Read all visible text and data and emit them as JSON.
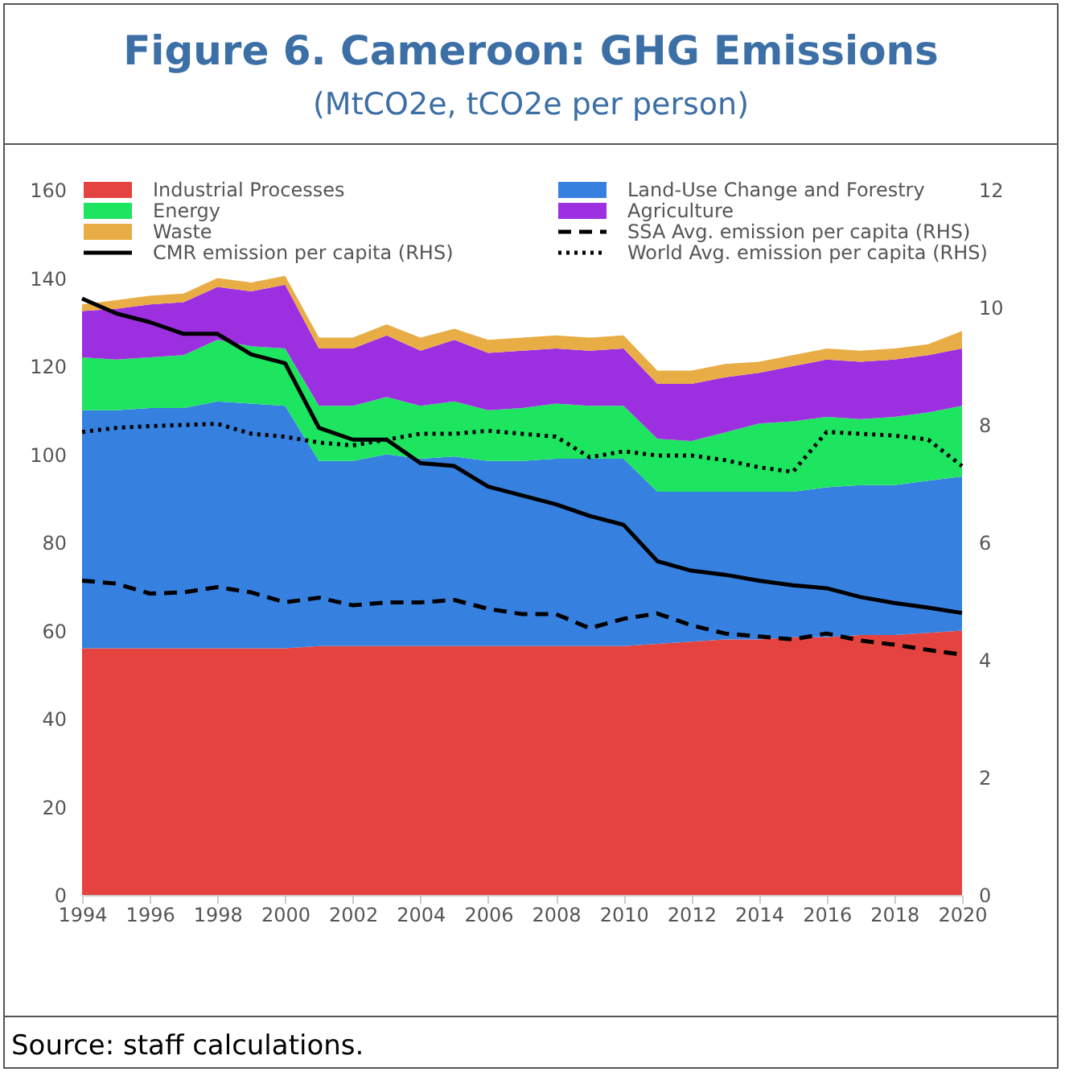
{
  "chart_data": {
    "type": "area",
    "title": "Figure 6. Cameroon: GHG Emissions",
    "subtitle": "(MtCO2e, tCO2e per person)",
    "x": [
      1994,
      1995,
      1996,
      1997,
      1998,
      1999,
      2000,
      2001,
      2002,
      2003,
      2004,
      2005,
      2006,
      2007,
      2008,
      2009,
      2010,
      2011,
      2012,
      2013,
      2014,
      2015,
      2016,
      2017,
      2018,
      2019,
      2020
    ],
    "xlim": [
      1994,
      2020
    ],
    "xticks": [
      1994,
      1996,
      1998,
      2000,
      2002,
      2004,
      2006,
      2008,
      2010,
      2012,
      2014,
      2016,
      2018,
      2020
    ],
    "ylim": [
      0,
      160
    ],
    "yticks": [
      0,
      20,
      40,
      60,
      80,
      100,
      120,
      140,
      160
    ],
    "y2lim": [
      0,
      12
    ],
    "y2ticks": [
      0,
      2,
      4,
      6,
      8,
      10,
      12
    ],
    "stacked": true,
    "grid": false,
    "legend": "top",
    "series": [
      {
        "name": "Industrial Processes",
        "color": "#e5433f",
        "values": [
          56,
          56,
          56,
          56,
          56,
          56,
          56,
          56.5,
          56.5,
          56.5,
          56.5,
          56.5,
          56.5,
          56.5,
          56.5,
          56.5,
          56.5,
          57,
          57.5,
          58,
          58,
          58.5,
          58.5,
          59,
          59,
          59.5,
          60
        ]
      },
      {
        "name": "Land-Use Change and Forestry",
        "color": "#3680e0",
        "values": [
          54,
          54,
          54.5,
          54.5,
          56,
          55.5,
          55,
          42,
          42,
          43.5,
          42.5,
          43,
          42,
          42,
          42.5,
          42.5,
          42.5,
          34.5,
          34,
          33.5,
          33.5,
          33,
          34,
          34,
          34,
          34.5,
          35
        ]
      },
      {
        "name": "Energy",
        "color": "#1de560",
        "values": [
          12,
          11.5,
          11.5,
          12,
          14,
          13,
          13,
          12.5,
          12.5,
          13,
          12,
          12.5,
          11.5,
          12,
          12.5,
          12,
          12,
          12,
          11.5,
          13.5,
          15.5,
          16,
          16,
          15,
          15.5,
          15.5,
          16
        ]
      },
      {
        "name": "Agriculture",
        "color": "#9c30e0",
        "values": [
          10.5,
          11.5,
          12,
          12,
          12,
          12.5,
          14.5,
          13,
          13,
          14,
          12.5,
          14,
          13,
          13,
          12.5,
          12.5,
          13,
          12.5,
          13,
          12.5,
          11.5,
          12.5,
          13,
          13,
          13,
          13,
          13
        ]
      },
      {
        "name": "Waste",
        "color": "#e8ad44",
        "values": [
          1.5,
          2,
          2,
          2,
          2,
          2,
          2,
          2.5,
          2.5,
          2.5,
          3,
          2.5,
          3,
          3,
          3,
          3,
          3,
          3,
          3,
          3,
          2.5,
          2.5,
          2.5,
          2.5,
          2.5,
          2.5,
          4
        ]
      },
      {
        "name": "SSA Avg. emission per capita (RHS)",
        "type": "line",
        "axis": "y2",
        "line_style": "dashed",
        "color": "#000000",
        "values": [
          5.35,
          5.3,
          5.13,
          5.15,
          5.24,
          5.15,
          4.98,
          5.06,
          4.93,
          4.98,
          4.98,
          5.02,
          4.87,
          4.78,
          4.78,
          4.54,
          4.7,
          4.79,
          4.59,
          4.45,
          4.4,
          4.35,
          4.45,
          4.33,
          4.26,
          4.17,
          4.09
        ]
      },
      {
        "name": "CMR emission per capita (RHS)",
        "type": "line",
        "axis": "y2",
        "line_style": "solid",
        "color": "#000000",
        "values": [
          10.15,
          9.9,
          9.75,
          9.55,
          9.55,
          9.2,
          9.05,
          7.95,
          7.75,
          7.75,
          7.35,
          7.3,
          6.95,
          6.8,
          6.65,
          6.45,
          6.3,
          5.68,
          5.52,
          5.45,
          5.35,
          5.27,
          5.22,
          5.07,
          4.97,
          4.89,
          4.8
        ]
      },
      {
        "name": "World Avg. emission per capita (RHS)",
        "type": "line",
        "axis": "y2",
        "line_style": "dotted",
        "color": "#000000",
        "values": [
          7.88,
          7.95,
          7.98,
          8,
          8.02,
          7.85,
          7.8,
          7.7,
          7.65,
          7.75,
          7.85,
          7.85,
          7.9,
          7.85,
          7.8,
          7.45,
          7.55,
          7.48,
          7.48,
          7.4,
          7.28,
          7.2,
          7.88,
          7.85,
          7.82,
          7.75,
          7.3
        ]
      }
    ],
    "annotations": [
      "Source: staff calculations."
    ]
  }
}
